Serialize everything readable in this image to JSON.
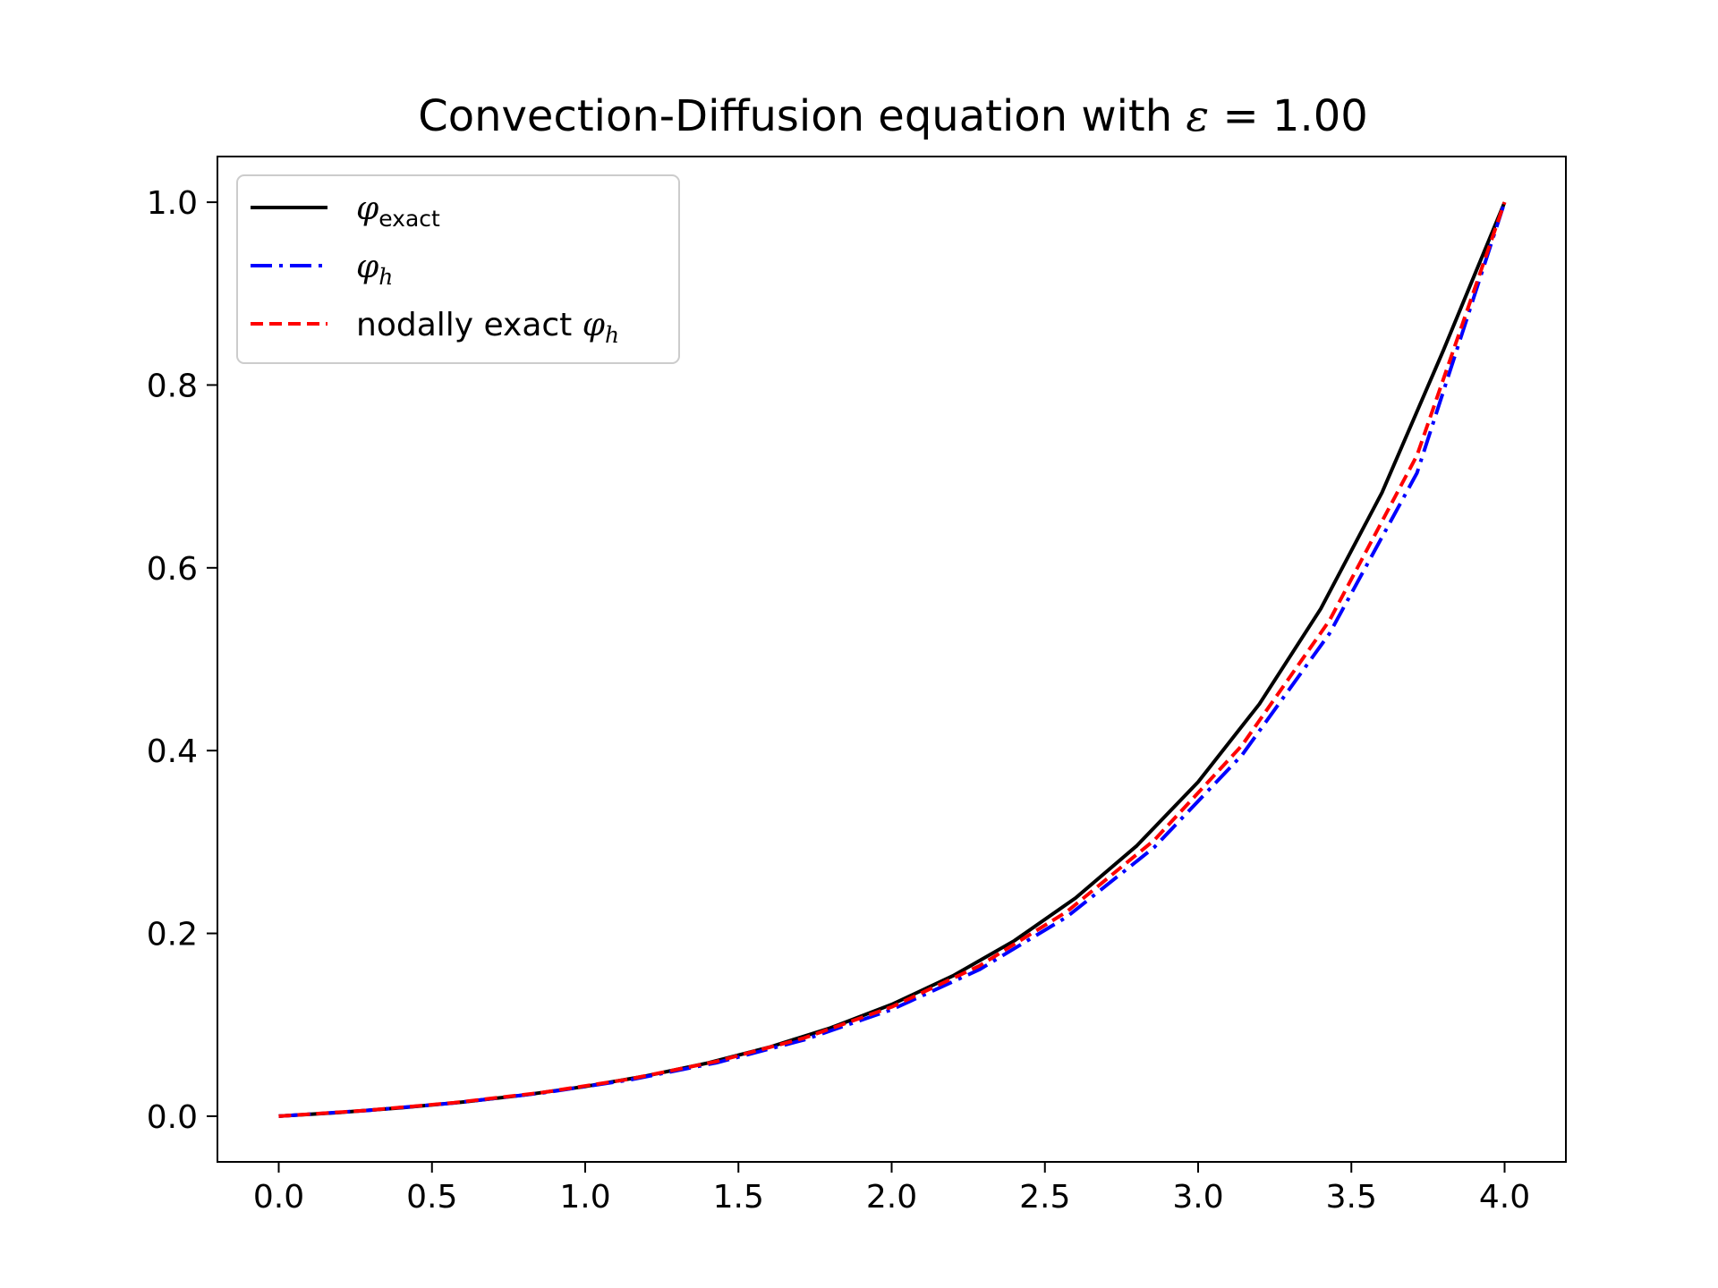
{
  "chart_data": {
    "type": "line",
    "title": "Convection-Diffusion equation with ε = 1.00",
    "title_parts": {
      "text": "Convection-Diffusion equation with ",
      "symbol": "ε",
      "equals": " = 1.00"
    },
    "xlabel": "",
    "ylabel": "",
    "xlim": [
      -0.2,
      4.2
    ],
    "ylim": [
      -0.05,
      1.05
    ],
    "xticks": [
      0.0,
      0.5,
      1.0,
      1.5,
      2.0,
      2.5,
      3.0,
      3.5,
      4.0
    ],
    "xtick_labels": [
      "0.0",
      "0.5",
      "1.0",
      "1.5",
      "2.0",
      "2.5",
      "3.0",
      "3.5",
      "4.0"
    ],
    "yticks": [
      0.0,
      0.2,
      0.4,
      0.6,
      0.8,
      1.0
    ],
    "ytick_labels": [
      "0.0",
      "0.2",
      "0.4",
      "0.6",
      "0.8",
      "1.0"
    ],
    "grid": false,
    "legend_placement": "top-left",
    "series": [
      {
        "name": "φexact",
        "legend_main": "φ",
        "legend_sub": "exact",
        "color": "#000000",
        "style": "solid",
        "x": [
          0.0,
          0.2,
          0.4,
          0.6,
          0.8,
          1.0,
          1.2,
          1.4,
          1.6,
          1.8,
          2.0,
          2.2,
          2.4,
          2.6,
          2.8,
          3.0,
          3.2,
          3.4,
          3.6,
          3.8,
          4.0
        ],
        "y": [
          0.0,
          0.0041,
          0.0092,
          0.0154,
          0.0231,
          0.0325,
          0.0441,
          0.0582,
          0.0754,
          0.0965,
          0.1222,
          0.1536,
          0.1919,
          0.2387,
          0.2959,
          0.3657,
          0.451,
          0.5551,
          0.6823,
          0.8377,
          1.0
        ]
      },
      {
        "name": "φh",
        "legend_main": "φ",
        "legend_sub": "h",
        "color": "#0000ff",
        "style": "dashdot",
        "x": [
          0.0,
          0.2857,
          0.5714,
          0.8571,
          1.1429,
          1.4286,
          1.7143,
          2.0,
          2.2857,
          2.5714,
          2.8571,
          3.1429,
          3.4286,
          3.7143,
          4.0
        ],
        "y": [
          0.0,
          0.0062,
          0.0144,
          0.0253,
          0.0396,
          0.0585,
          0.0835,
          0.1166,
          0.1603,
          0.218,
          0.2943,
          0.395,
          0.5281,
          0.7039,
          1.0
        ]
      },
      {
        "name": "nodally exact φh",
        "legend_prefix": "nodally exact ",
        "legend_main": "φ",
        "legend_sub": "h",
        "color": "#ff0000",
        "style": "dashed",
        "x": [
          0.0,
          0.2857,
          0.5714,
          0.8571,
          1.1429,
          1.4286,
          1.7143,
          2.0,
          2.2857,
          2.5714,
          2.8571,
          3.1429,
          3.4286,
          3.7143,
          4.0
        ],
        "y": [
          0.0,
          0.0063,
          0.0147,
          0.0258,
          0.0405,
          0.0599,
          0.0855,
          0.1195,
          0.1644,
          0.2237,
          0.3021,
          0.4056,
          0.5424,
          0.7231,
          1.0
        ]
      }
    ]
  }
}
